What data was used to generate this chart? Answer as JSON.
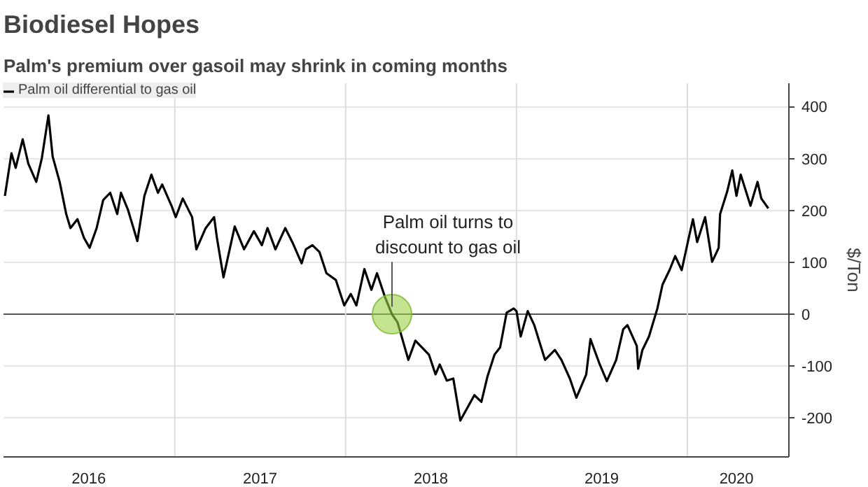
{
  "chart_data": {
    "type": "line",
    "title": "Biodiesel Hopes",
    "subtitle": "Palm's premium over gasoil may shrink in coming months",
    "ylabel": "$/Ton",
    "x": [
      "2016-01-04",
      "2016-01-18",
      "2016-01-27",
      "2016-02-11",
      "2016-02-23",
      "2016-03-11",
      "2016-03-23",
      "2016-04-06",
      "2016-04-15",
      "2016-04-30",
      "2016-05-14",
      "2016-05-23",
      "2016-06-07",
      "2016-06-21",
      "2016-07-03",
      "2016-07-18",
      "2016-08-01",
      "2016-08-16",
      "2016-08-31",
      "2016-09-08",
      "2016-09-23",
      "2016-10-13",
      "2016-10-28",
      "2016-11-12",
      "2016-11-26",
      "2016-12-05",
      "2016-12-25",
      "2017-01-03",
      "2017-01-18",
      "2017-02-07",
      "2017-02-16",
      "2017-03-08",
      "2017-03-26",
      "2017-04-01",
      "2017-04-15",
      "2017-05-09",
      "2017-05-29",
      "2017-06-19",
      "2017-07-06",
      "2017-07-18",
      "2017-08-04",
      "2017-08-25",
      "2017-09-09",
      "2017-09-29",
      "2017-10-08",
      "2017-10-22",
      "2017-11-06",
      "2017-11-21",
      "2017-12-11",
      "2017-12-29",
      "2018-01-12",
      "2018-01-24",
      "2018-02-10",
      "2018-02-25",
      "2018-03-09",
      "2018-03-26",
      "2018-04-10",
      "2018-04-22",
      "2018-05-15",
      "2018-05-30",
      "2018-06-28",
      "2018-07-12",
      "2018-07-21",
      "2018-08-05",
      "2018-08-19",
      "2018-09-03",
      "2018-10-03",
      "2018-10-18",
      "2018-10-31",
      "2018-11-15",
      "2018-11-27",
      "2018-12-11",
      "2018-12-26",
      "2019-01-01",
      "2019-01-10",
      "2019-01-25",
      "2019-02-08",
      "2019-03-03",
      "2019-03-24",
      "2019-04-07",
      "2019-04-25",
      "2019-05-09",
      "2019-05-30",
      "2019-06-08",
      "2019-06-28",
      "2019-07-13",
      "2019-08-02",
      "2019-08-17",
      "2019-08-26",
      "2019-09-15",
      "2019-09-18",
      "2019-09-27",
      "2019-10-11",
      "2019-10-29",
      "2019-11-09",
      "2019-11-24",
      "2019-12-06",
      "2019-12-20",
      "2020-01-04",
      "2020-01-13",
      "2020-01-22",
      "2020-02-08",
      "2020-02-23",
      "2020-03-08",
      "2020-03-11",
      "2020-03-26",
      "2020-04-06",
      "2020-04-15",
      "2020-04-24",
      "2020-05-15",
      "2020-05-30",
      "2020-06-07",
      "2020-06-22"
    ],
    "series": [
      {
        "name": "Palm oil differential to gas oil",
        "color": "#000000",
        "values": [
          228,
          310,
          282,
          337,
          290,
          255,
          301,
          383,
          304,
          255,
          193,
          166,
          183,
          147,
          128,
          166,
          220,
          234,
          193,
          234,
          201,
          141,
          228,
          269,
          234,
          250,
          209,
          187,
          223,
          187,
          125,
          166,
          187,
          147,
          71,
          169,
          125,
          160,
          133,
          166,
          125,
          166,
          139,
          98,
          125,
          133,
          120,
          79,
          66,
          17,
          39,
          17,
          87,
          47,
          79,
          33,
          0,
          -16,
          -88,
          -51,
          -78,
          -116,
          -97,
          -128,
          -124,
          -205,
          -156,
          -169,
          -120,
          -78,
          -64,
          3,
          11,
          6,
          -43,
          6,
          -21,
          -88,
          -69,
          -88,
          -124,
          -161,
          -116,
          -48,
          -97,
          -129,
          -88,
          -29,
          -21,
          -61,
          -105,
          -69,
          -43,
          11,
          57,
          85,
          112,
          85,
          147,
          183,
          139,
          187,
          101,
          128,
          193,
          236,
          277,
          228,
          269,
          209,
          255,
          223,
          204
        ]
      }
    ],
    "xlim": [
      "2016-01-01",
      "2020-08-05"
    ],
    "xticks": [
      {
        "value": "2016-07-01",
        "label": "2016"
      },
      {
        "value": "2017-07-02",
        "label": "2017"
      },
      {
        "value": "2018-07-02",
        "label": "2018"
      },
      {
        "value": "2019-07-02",
        "label": "2019"
      },
      {
        "value": "2020-04-15",
        "label": "2020"
      }
    ],
    "ylim": [
      -275,
      445
    ],
    "yticks": [
      -200,
      -100,
      0,
      100,
      200,
      300,
      400
    ],
    "ref_lines": [
      {
        "axis": "y",
        "value": 0,
        "color": "#555555"
      },
      {
        "axis": "x",
        "value": "2017-01-01",
        "color": "#dddddd"
      },
      {
        "axis": "x",
        "value": "2018-01-01",
        "color": "#dddddd"
      },
      {
        "axis": "x",
        "value": "2019-01-01",
        "color": "#dddddd"
      },
      {
        "axis": "x",
        "value": "2020-01-01",
        "color": "#dddddd"
      }
    ],
    "annotations": [
      {
        "text": "Palm oil turns to\ndiscount to gas oil",
        "x": "2018-04-10",
        "y": 0
      }
    ],
    "grid": "y",
    "legend": "top left"
  }
}
